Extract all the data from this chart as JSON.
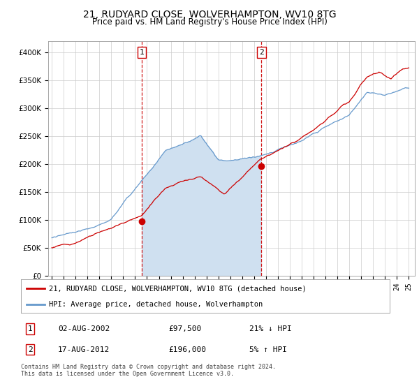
{
  "title": "21, RUDYARD CLOSE, WOLVERHAMPTON, WV10 8TG",
  "subtitle": "Price paid vs. HM Land Registry's House Price Index (HPI)",
  "bg_color": "#ffffff",
  "plot_bg_color": "#ffffff",
  "fill_color": "#cfe0f0",
  "ylim": [
    0,
    420000
  ],
  "yticks": [
    0,
    50000,
    100000,
    150000,
    200000,
    250000,
    300000,
    350000,
    400000
  ],
  "ytick_labels": [
    "£0",
    "£50K",
    "£100K",
    "£150K",
    "£200K",
    "£250K",
    "£300K",
    "£350K",
    "£400K"
  ],
  "hpi_color": "#6699cc",
  "price_color": "#cc0000",
  "sale1_date": 2002.58,
  "sale1_price": 97500,
  "sale1_label": "1",
  "sale2_date": 2012.62,
  "sale2_price": 196000,
  "sale2_label": "2",
  "legend_line1": "21, RUDYARD CLOSE, WOLVERHAMPTON, WV10 8TG (detached house)",
  "legend_line2": "HPI: Average price, detached house, Wolverhampton",
  "table_row1_num": "1",
  "table_row1_date": "02-AUG-2002",
  "table_row1_price": "£97,500",
  "table_row1_hpi": "21% ↓ HPI",
  "table_row2_num": "2",
  "table_row2_date": "17-AUG-2012",
  "table_row2_price": "£196,000",
  "table_row2_hpi": "5% ↑ HPI",
  "footer": "Contains HM Land Registry data © Crown copyright and database right 2024.\nThis data is licensed under the Open Government Licence v3.0."
}
